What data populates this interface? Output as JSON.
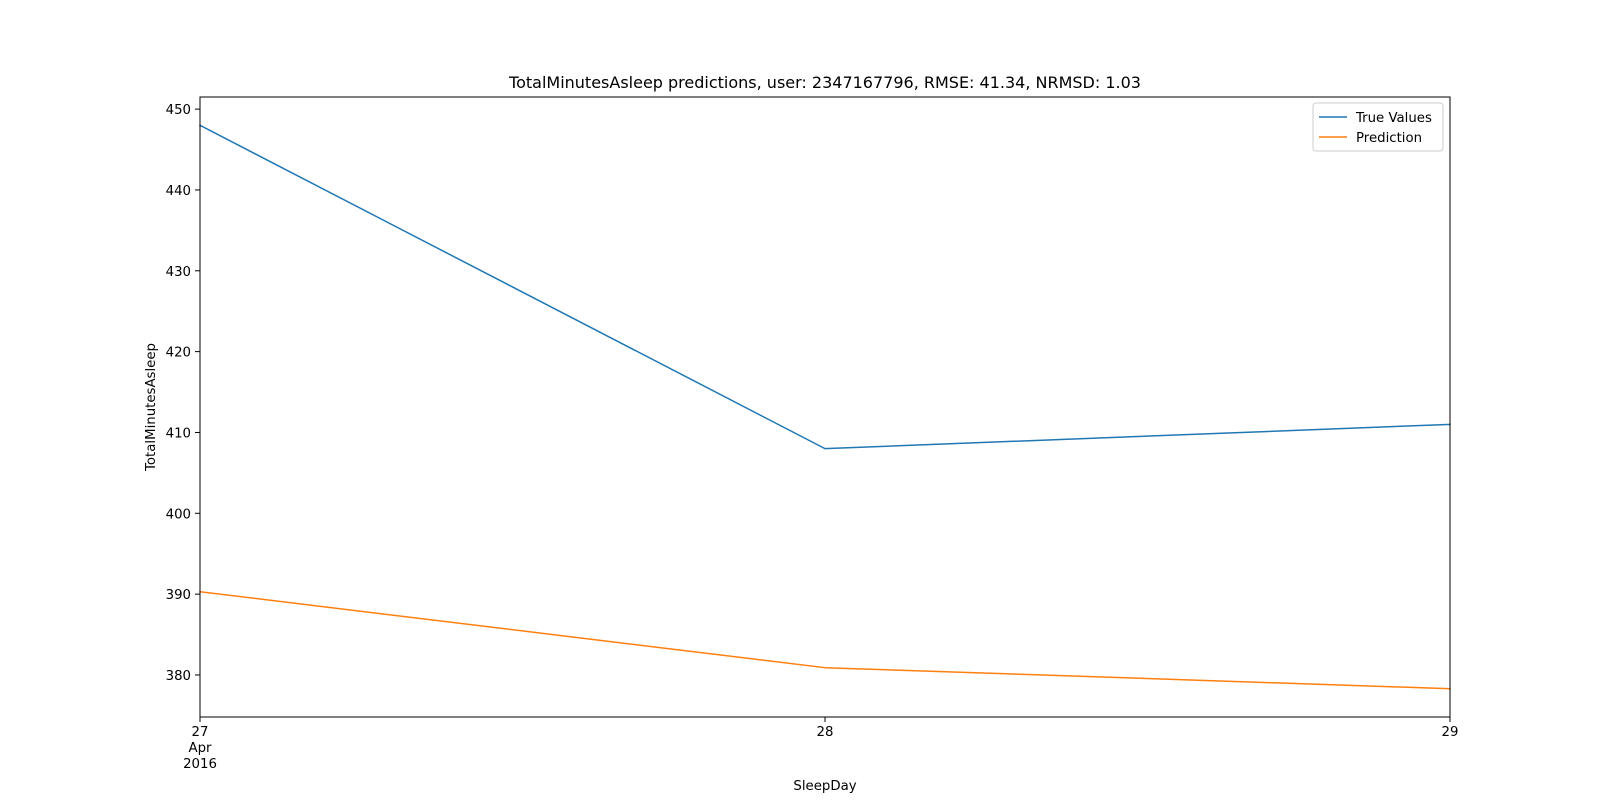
{
  "chart_data": {
    "type": "line",
    "title": "TotalMinutesAsleep predictions, user: 2347167796, RMSE: 41.34, NRMSD: 1.03",
    "xlabel": "SleepDay",
    "ylabel": "TotalMinutesAsleep",
    "x": [
      "2016-04-27",
      "2016-04-28",
      "2016-04-29"
    ],
    "x_tick_labels": [
      {
        "day": "27",
        "month": "Apr",
        "year": "2016"
      },
      {
        "day": "28",
        "month": "",
        "year": ""
      },
      {
        "day": "29",
        "month": "",
        "year": ""
      }
    ],
    "ylim": [
      374.8,
      451.5
    ],
    "y_ticks": [
      380,
      390,
      400,
      410,
      420,
      430,
      440,
      450
    ],
    "series": [
      {
        "name": "True Values",
        "color": "#1f77b4",
        "values": [
          448,
          408,
          411
        ]
      },
      {
        "name": "Prediction",
        "color": "#ff7f0e",
        "values": [
          390.3,
          380.9,
          378.3
        ]
      }
    ],
    "grid": false,
    "legend": "top-right"
  }
}
